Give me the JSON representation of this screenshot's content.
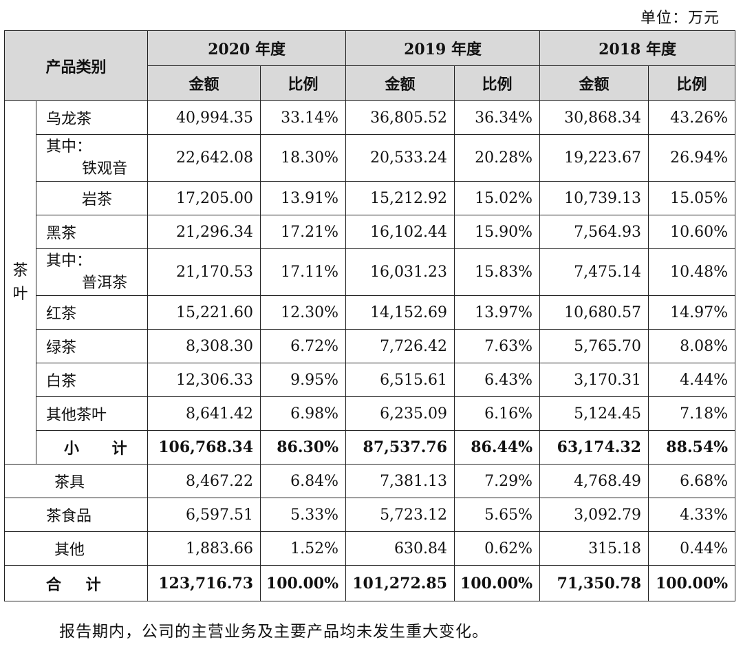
{
  "unit_label": "单位：万元",
  "header": {
    "category": "产品类别",
    "years": [
      "2020 年度",
      "2019 年度",
      "2018 年度"
    ],
    "amount": "金额",
    "ratio": "比例"
  },
  "tea_group_label": "茶叶",
  "rows": [
    {
      "prefix": "",
      "name": "乌龙茶",
      "v": [
        "40,994.35",
        "33.14%",
        "36,805.52",
        "36.34%",
        "30,868.34",
        "43.26%"
      ]
    },
    {
      "prefix": "其中：",
      "name": "铁观音",
      "v": [
        "22,642.08",
        "18.30%",
        "20,533.24",
        "20.28%",
        "19,223.67",
        "26.94%"
      ]
    },
    {
      "prefix": "",
      "name": "岩茶",
      "v": [
        "17,205.00",
        "13.91%",
        "15,212.92",
        "15.02%",
        "10,739.13",
        "15.05%"
      ]
    },
    {
      "prefix": "",
      "name": "黑茶",
      "v": [
        "21,296.34",
        "17.21%",
        "16,102.44",
        "15.90%",
        "7,564.93",
        "10.60%"
      ]
    },
    {
      "prefix": "其中：",
      "name": "普洱茶",
      "v": [
        "21,170.53",
        "17.11%",
        "16,031.23",
        "15.83%",
        "7,475.14",
        "10.48%"
      ]
    },
    {
      "prefix": "",
      "name": "红茶",
      "v": [
        "15,221.60",
        "12.30%",
        "14,152.69",
        "13.97%",
        "10,680.57",
        "14.97%"
      ]
    },
    {
      "prefix": "",
      "name": "绿茶",
      "v": [
        "8,308.30",
        "6.72%",
        "7,726.42",
        "7.63%",
        "5,765.70",
        "8.08%"
      ]
    },
    {
      "prefix": "",
      "name": "白茶",
      "v": [
        "12,306.33",
        "9.95%",
        "6,515.61",
        "6.43%",
        "3,170.31",
        "4.44%"
      ]
    },
    {
      "prefix": "",
      "name": "其他茶叶",
      "v": [
        "8,641.42",
        "6.98%",
        "6,235.09",
        "6.16%",
        "5,124.45",
        "7.18%"
      ]
    }
  ],
  "subtotal": {
    "name": "小 计",
    "v": [
      "106,768.34",
      "86.30%",
      "87,537.76",
      "86.44%",
      "63,174.32",
      "88.54%"
    ]
  },
  "other_rows": [
    {
      "name": "茶具",
      "v": [
        "8,467.22",
        "6.84%",
        "7,381.13",
        "7.29%",
        "4,768.49",
        "6.68%"
      ]
    },
    {
      "name": "茶食品",
      "v": [
        "6,597.51",
        "5.33%",
        "5,723.12",
        "5.65%",
        "3,092.79",
        "4.33%"
      ]
    },
    {
      "name": "其他",
      "v": [
        "1,883.66",
        "1.52%",
        "630.84",
        "0.62%",
        "315.18",
        "0.44%"
      ]
    }
  ],
  "total": {
    "name": "合 计",
    "v": [
      "123,716.73",
      "100.00%",
      "101,272.85",
      "100.00%",
      "71,350.78",
      "100.00%"
    ]
  },
  "footnote": "报告期内，公司的主营业务及主要产品均未发生重大变化。"
}
